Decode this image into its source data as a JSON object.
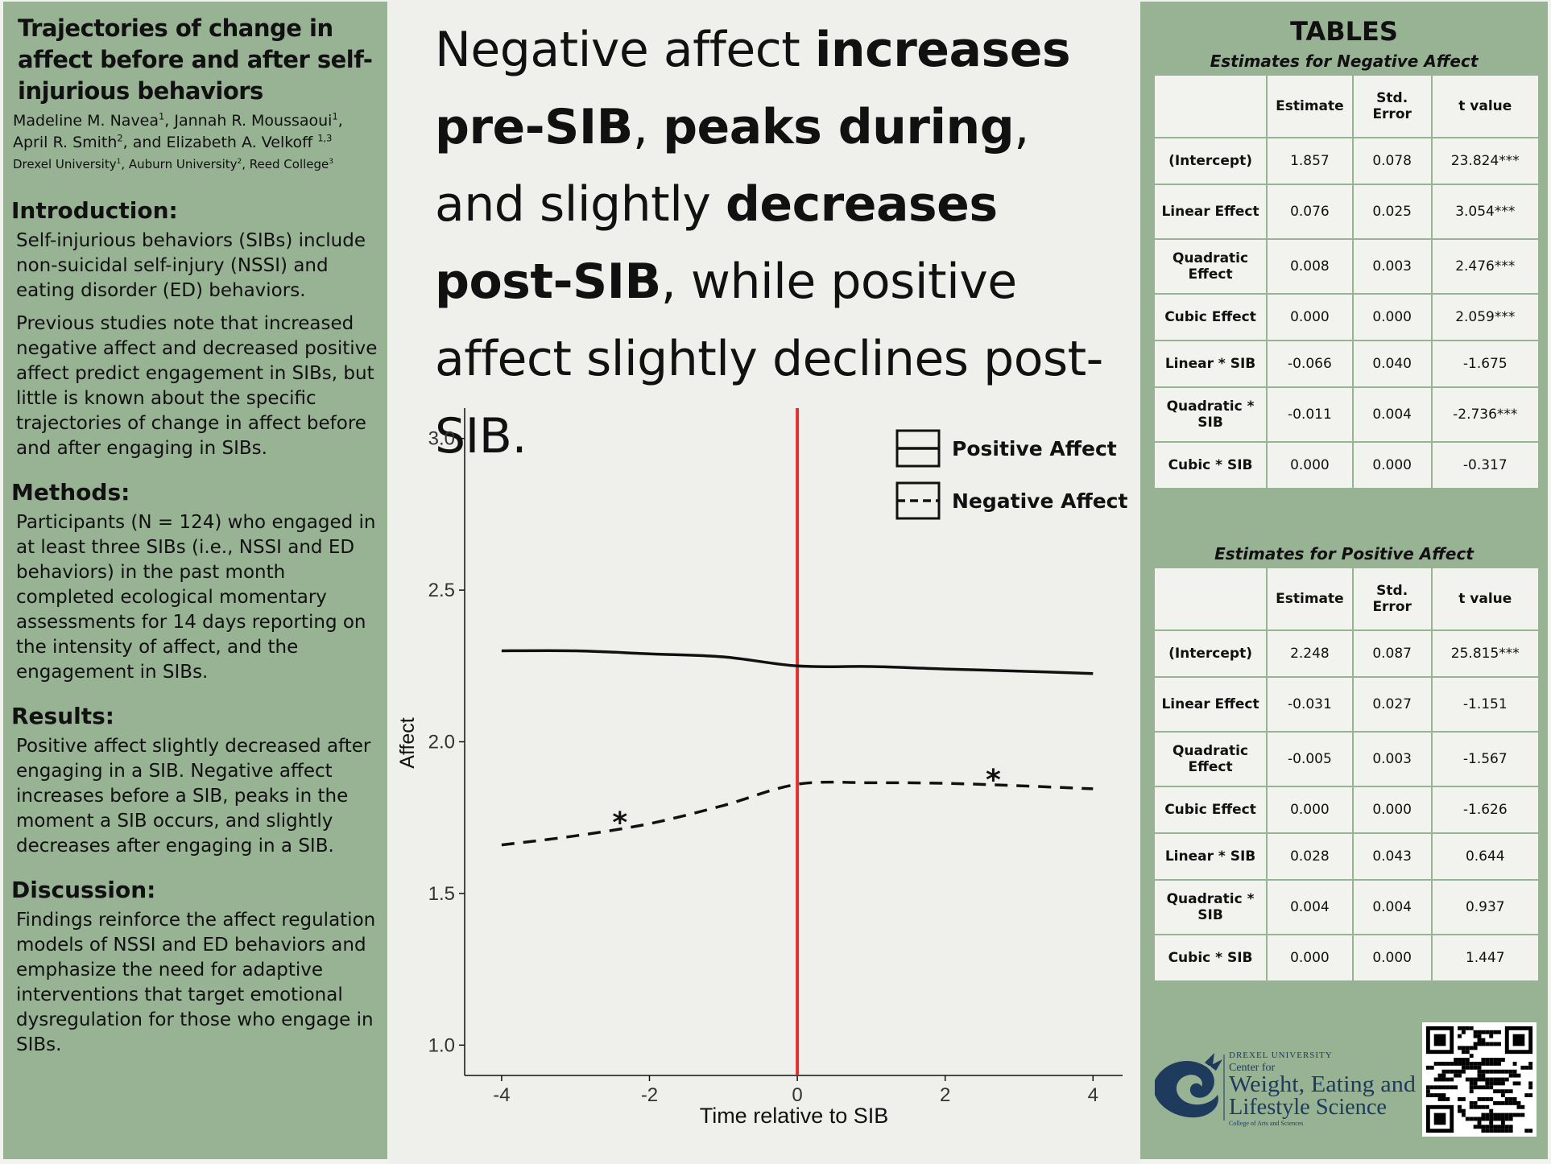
{
  "left": {
    "title": "Trajectories of change in affect before and after self-injurious behaviors",
    "authors_line1": [
      "Madeline M. Navea",
      "1",
      ", Jannah R. Moussaoui",
      "1",
      ","
    ],
    "authors_line2": [
      "April R. Smith",
      "2",
      ", and Elizabeth A. Velkoff ",
      "1,3"
    ],
    "affiliations": [
      "Drexel University",
      "1",
      ", Auburn University",
      "2",
      ", Reed College",
      "3"
    ],
    "sections": [
      {
        "heading": "Introduction:",
        "paragraphs": [
          "Self-injurious behaviors (SIBs) include non-suicidal self-injury (NSSI) and eating disorder (ED) behaviors.",
          "Previous studies note that increased negative affect and decreased positive affect predict engagement in SIBs, but little is known about the specific trajectories of change in affect before and after engaging in SIBs."
        ]
      },
      {
        "heading": "Methods:",
        "paragraphs": [
          "Participants (N = 124) who engaged in at least three SIBs (i.e., NSSI and ED behaviors) in the past month completed ecological momentary assessments for 14 days reporting on the intensity of affect, and the engagement in SIBs."
        ]
      },
      {
        "heading": "Results:",
        "paragraphs": [
          "Positive affect slightly decreased after engaging in a SIB. Negative affect increases before a SIB, peaks in the moment a SIB occurs, and slightly decreases after engaging in a SIB."
        ]
      },
      {
        "heading": "Discussion:",
        "paragraphs": [
          "Findings reinforce the affect regulation models of NSSI and ED behaviors and emphasize the need for adaptive interventions that target emotional dysregulation for those who engage in SIBs."
        ]
      }
    ]
  },
  "headline": {
    "p1": "Negative affect ",
    "b1": "increases pre-SIB",
    "p2": ", ",
    "b2": "peaks during",
    "p3": ", and slightly ",
    "b3": "decreases post-SIB",
    "p4": ", while positive affect slightly declines post-SIB."
  },
  "chart_data": {
    "type": "line",
    "xlabel": "Time relative to SIB",
    "ylabel": "Affect",
    "xlim": [
      -4.5,
      4.4
    ],
    "ylim": [
      0.9,
      3.1
    ],
    "x_ticks": [
      -4,
      -2,
      0,
      2,
      4
    ],
    "x_tick_labels": [
      "-4",
      "-2",
      "0",
      "2",
      "4"
    ],
    "y_ticks": [
      1.0,
      1.5,
      2.0,
      2.5,
      3.0
    ],
    "y_tick_labels": [
      "1.0",
      "1.5",
      "2.0",
      "2.5",
      "3.0"
    ],
    "vline": {
      "x": 0,
      "color": "#e0322c"
    },
    "legend_position": "top-right",
    "series": [
      {
        "name": "Positive Affect",
        "style": "solid",
        "x": [
          -4,
          -3,
          -2,
          -1,
          0,
          1,
          2,
          3,
          4
        ],
        "values": [
          2.3,
          2.3,
          2.29,
          2.28,
          2.25,
          2.248,
          2.24,
          2.233,
          2.225
        ]
      },
      {
        "name": "Negative Affect",
        "style": "dashed",
        "x": [
          -4,
          -3,
          -2,
          -1,
          0,
          1,
          2,
          3,
          4
        ],
        "values": [
          1.66,
          1.69,
          1.73,
          1.79,
          1.86,
          1.865,
          1.863,
          1.855,
          1.845
        ]
      }
    ],
    "annotations": [
      {
        "text": "*",
        "x": -2.4,
        "y": 1.76
      },
      {
        "text": "*",
        "x": 2.65,
        "y": 1.9
      }
    ]
  },
  "right": {
    "heading": "TABLES",
    "tables": [
      {
        "caption": "Estimates for Negative Affect",
        "columns": [
          "",
          "Estimate",
          "Std. Error",
          "t value"
        ],
        "rows": [
          [
            "(Intercept)",
            "1.857",
            "0.078",
            "23.824***"
          ],
          [
            "Linear Effect",
            "0.076",
            "0.025",
            "3.054***"
          ],
          [
            "Quadratic Effect",
            "0.008",
            "0.003",
            "2.476***"
          ],
          [
            "Cubic Effect",
            "0.000",
            "0.000",
            "2.059***"
          ],
          [
            "Linear * SIB",
            "-0.066",
            "0.040",
            "-1.675"
          ],
          [
            "Quadratic * SIB",
            "-0.011",
            "0.004",
            "-2.736***"
          ],
          [
            "Cubic * SIB",
            "0.000",
            "0.000",
            "-0.317"
          ]
        ]
      },
      {
        "caption": "Estimates for Positive Affect",
        "columns": [
          "",
          "Estimate",
          "Std. Error",
          "t value"
        ],
        "rows": [
          [
            "(Intercept)",
            "2.248",
            "0.087",
            "25.815***"
          ],
          [
            "Linear Effect",
            "-0.031",
            "0.027",
            "-1.151"
          ],
          [
            "Quadratic Effect",
            "-0.005",
            "0.003",
            "-1.567"
          ],
          [
            "Cubic Effect",
            "0.000",
            "0.000",
            "-1.626"
          ],
          [
            "Linear * SIB",
            "0.028",
            "0.043",
            "0.644"
          ],
          [
            "Quadratic * SIB",
            "0.004",
            "0.004",
            "0.937"
          ],
          [
            "Cubic * SIB",
            "0.000",
            "0.000",
            "1.447"
          ]
        ]
      }
    ],
    "logo": {
      "line1": "DREXEL UNIVERSITY",
      "line2": "Center for",
      "line3": "Weight, Eating and",
      "line4": "Lifestyle Science",
      "line5": "College of Arts and Sciences"
    }
  },
  "colors": {
    "panel": "#98b294",
    "background": "#efefeb",
    "sib_line": "#e0322c",
    "logo": "#1e3a5c"
  }
}
